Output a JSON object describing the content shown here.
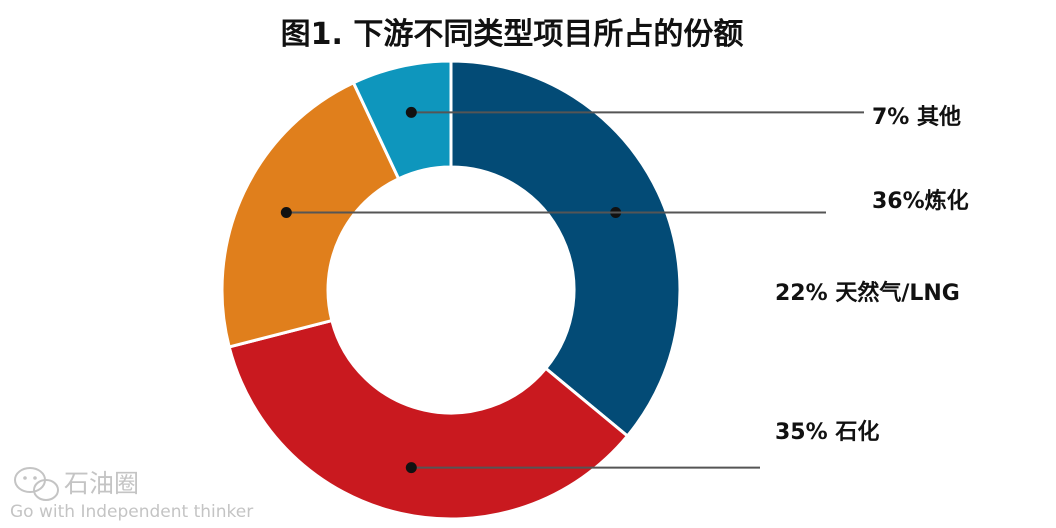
{
  "chart_data": {
    "type": "pie",
    "variant": "donut",
    "title": "图1. 下游不同类型项目所占的份额",
    "slices": [
      {
        "label": "36%炼化",
        "value": 36,
        "color": "#034b76"
      },
      {
        "label": "35% 石化",
        "value": 35,
        "color": "#c9191f"
      },
      {
        "label": "22% 天然气/LNG",
        "value": 22,
        "color": "#e07f1c"
      },
      {
        "label": "7% 其他",
        "value": 7,
        "color": "#0e96bd"
      }
    ],
    "legend": "none"
  },
  "watermark": {
    "name": "石油圈",
    "tagline": "Go with Independent thinker"
  }
}
